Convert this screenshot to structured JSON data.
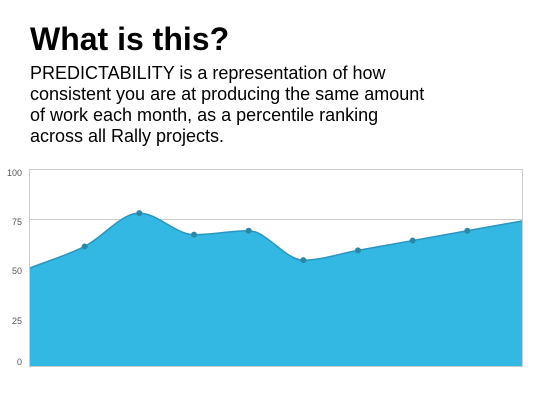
{
  "header": {
    "title": "What is this?",
    "description": "PREDICTABILITY is a representation of how consistent you are at producing the same amount of work each month, as a percentile ranking across all Rally projects."
  },
  "colors": {
    "area_fill": "#33b8e3",
    "line": "#2a95bf",
    "point": "#2b87a8",
    "grid": "#cccccc",
    "frame": "#cccccc"
  },
  "chart_data": {
    "type": "area",
    "title": "",
    "xlabel": "",
    "ylabel": "",
    "x": [
      0,
      1,
      2,
      3,
      4,
      5,
      6,
      7,
      8,
      9
    ],
    "series": [
      {
        "name": "",
        "values": [
          50,
          61,
          78,
          67,
          69,
          54,
          59,
          64,
          69,
          74
        ],
        "markers": [
          false,
          true,
          true,
          true,
          true,
          true,
          true,
          true,
          true,
          false
        ]
      }
    ],
    "ylim": [
      0,
      100
    ],
    "yticks": [
      "0",
      "25",
      "50",
      "75",
      "100"
    ],
    "grid": true,
    "legend": "none"
  }
}
